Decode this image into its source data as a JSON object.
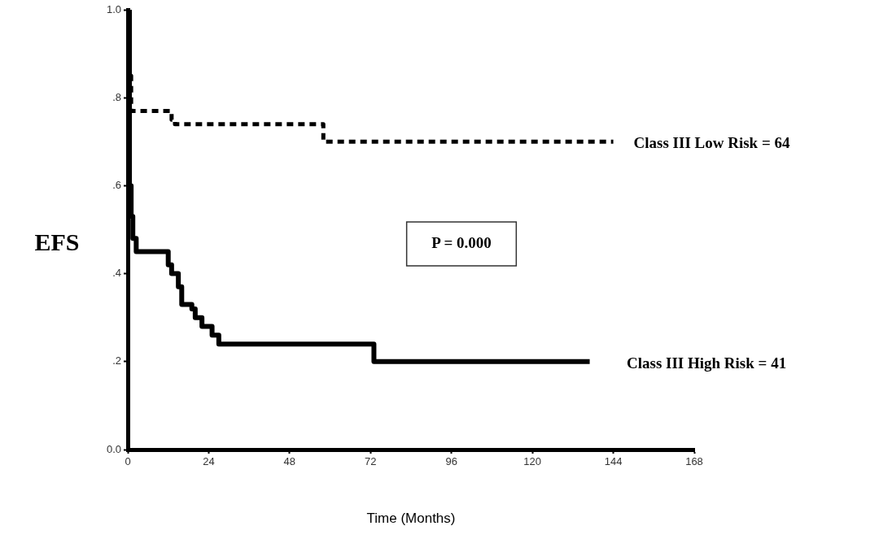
{
  "chart_data": {
    "type": "step",
    "xlabel": "Time (Months)",
    "ylabel": "EFS",
    "xlim": [
      0,
      168
    ],
    "xticks": [
      0,
      24,
      48,
      72,
      96,
      120,
      144,
      168
    ],
    "ylim": [
      0,
      1
    ],
    "yticks": [
      {
        "value": 0,
        "label": "0.0"
      },
      {
        "value": 0.2,
        "label": ".2"
      },
      {
        "value": 0.4,
        "label": ".4"
      },
      {
        "value": 0.6,
        "label": ".6"
      },
      {
        "value": 0.8,
        "label": ".8"
      },
      {
        "value": 1,
        "label": "1.0"
      }
    ],
    "grid": false,
    "legend": false,
    "marker": "none",
    "annotations": [
      "P = 0.000"
    ],
    "series": [
      {
        "name": "Class III Low Risk = 64",
        "color": "#000000",
        "line_style": "dashed",
        "x": [
          0,
          0.3,
          0.6,
          1,
          13,
          14,
          58,
          144
        ],
        "values": [
          1,
          0.93,
          0.85,
          0.77,
          0.75,
          0.74,
          0.7,
          0.7
        ]
      },
      {
        "name": "Class III High Risk = 41",
        "color": "#000000",
        "line_style": "solid",
        "x": [
          0,
          0.5,
          1,
          1.5,
          2.5,
          12,
          13,
          15,
          16,
          19,
          20,
          22,
          25,
          27,
          73,
          137
        ],
        "values": [
          1,
          0.6,
          0.53,
          0.48,
          0.45,
          0.42,
          0.4,
          0.37,
          0.33,
          0.32,
          0.3,
          0.28,
          0.26,
          0.24,
          0.2,
          0.2
        ]
      }
    ]
  }
}
